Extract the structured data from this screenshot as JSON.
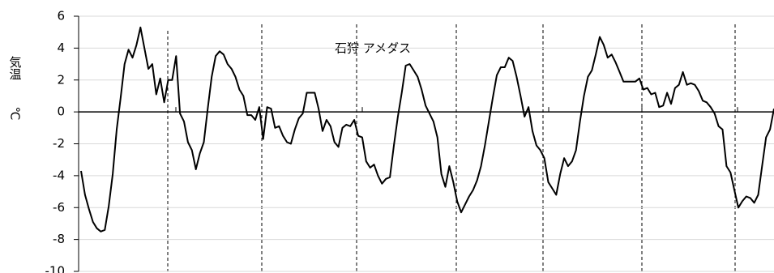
{
  "chart_data": {
    "type": "line",
    "title": "石狩 アメダス",
    "y_label": "気温",
    "y_unit": "℃",
    "series": [
      {
        "name": null,
        "color": "#000000",
        "values": [
          -3.7,
          -5.2,
          -6.1,
          -6.9,
          -7.3,
          -7.5,
          -7.4,
          -5.9,
          -3.9,
          -1.1,
          0.9,
          3.0,
          3.9,
          3.4,
          4.2,
          5.3,
          4.0,
          2.7,
          3.0,
          1.1,
          2.1,
          0.6,
          2.0,
          2.0,
          3.5,
          -0.1,
          -0.6,
          -1.9,
          -2.4,
          -3.6,
          -2.6,
          -1.9,
          0.2,
          2.2,
          3.5,
          3.8,
          3.6,
          3.0,
          2.7,
          2.2,
          1.4,
          1.0,
          -0.2,
          -0.2,
          -0.5,
          0.3,
          -1.7,
          0.3,
          0.2,
          -1.0,
          -0.9,
          -1.5,
          -1.9,
          -2.0,
          -1.1,
          -0.4,
          -0.1,
          1.2,
          1.2,
          1.2,
          0.2,
          -1.2,
          -0.5,
          -0.9,
          -1.9,
          -2.2,
          -1.0,
          -0.8,
          -0.9,
          -0.5,
          -1.5,
          -1.6,
          -3.1,
          -3.5,
          -3.3,
          -4.0,
          -4.5,
          -4.2,
          -4.1,
          -2.1,
          -0.3,
          1.2,
          2.9,
          3.0,
          2.6,
          2.2,
          1.4,
          0.4,
          -0.1,
          -0.6,
          -1.6,
          -3.9,
          -4.7,
          -3.4,
          -4.4,
          -5.6,
          -6.3,
          -5.8,
          -5.3,
          -4.9,
          -4.3,
          -3.4,
          -2.1,
          -0.6,
          0.9,
          2.3,
          2.8,
          2.8,
          3.4,
          3.2,
          2.2,
          1.0,
          -0.3,
          0.3,
          -1.2,
          -2.1,
          -2.4,
          -2.9,
          -4.4,
          -4.8,
          -5.2,
          -3.9,
          -2.9,
          -3.4,
          -3.1,
          -2.4,
          -0.6,
          1.0,
          2.2,
          2.6,
          3.6,
          4.7,
          4.2,
          3.4,
          3.6,
          3.1,
          2.5,
          1.9,
          1.9,
          1.9,
          1.9,
          2.1,
          1.4,
          1.5,
          1.1,
          1.2,
          0.3,
          0.4,
          1.2,
          0.5,
          1.5,
          1.7,
          2.5,
          1.7,
          1.8,
          1.7,
          1.3,
          0.7,
          0.6,
          0.3,
          -0.1,
          -0.9,
          -1.1,
          -3.4,
          -3.8,
          -4.9,
          -6.0,
          -5.6,
          -5.3,
          -5.4,
          -5.7,
          -5.2,
          -3.4,
          -1.6,
          -1.1,
          0.2
        ]
      }
    ],
    "ylim": [
      -10,
      6
    ],
    "yticks": [
      -10,
      -8,
      -6,
      -4,
      -2,
      0,
      2,
      4,
      6
    ],
    "grid": true
  }
}
